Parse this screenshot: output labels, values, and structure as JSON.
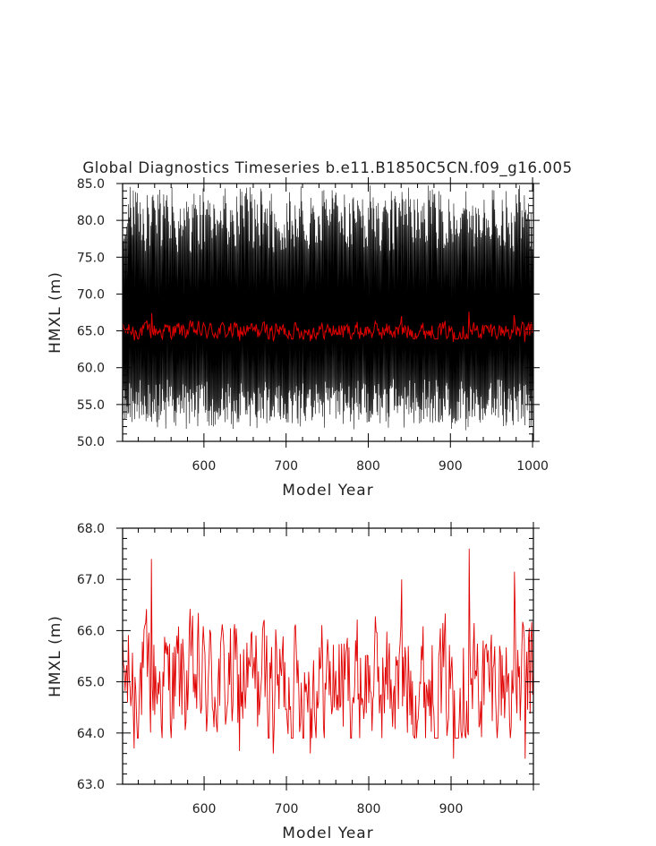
{
  "figure": {
    "title": "Global Diagnostics Timeseries b.e11.B1850C5CN.f09_g16.005"
  },
  "colors": {
    "monthly": "#000000",
    "annual": "#e00000",
    "axes": "#000000",
    "text": "#222222"
  },
  "chart_data": [
    {
      "type": "line",
      "panel": "top",
      "xlabel": "Model Year",
      "ylabel": "HMXL (m)",
      "xlim": [
        501,
        1001
      ],
      "ylim": [
        50.0,
        85.0
      ],
      "x_ticks": [
        600,
        700,
        800,
        900,
        1000
      ],
      "x_tick_labels": [
        "600",
        "700",
        "800",
        "900",
        "1000"
      ],
      "y_ticks": [
        50,
        55,
        60,
        65,
        70,
        75,
        80,
        85
      ],
      "y_tick_labels": [
        "50.0",
        "55.0",
        "60.0",
        "65.0",
        "70.0",
        "75.0",
        "80.0",
        "85.0"
      ],
      "grid": false,
      "series": [
        {
          "style": "monthly-cycle",
          "color": "#000000",
          "points_per_year": 12,
          "mean": 65.0,
          "seasonal_min_range": [
            52.0,
            58.0
          ],
          "seasonal_max_range": [
            76.0,
            84.5
          ]
        },
        {
          "style": "annual-mean",
          "color": "#e00000",
          "mean": 65.0,
          "min": 63.5,
          "max": 67.6
        }
      ]
    },
    {
      "type": "line",
      "panel": "bottom",
      "xlabel": "Model Year",
      "ylabel": "HMXL (m)",
      "xlim": [
        501,
        1000
      ],
      "ylim": [
        63.0,
        68.0
      ],
      "x_ticks": [
        600,
        700,
        800,
        900
      ],
      "x_tick_labels": [
        "600",
        "700",
        "800",
        "900"
      ],
      "y_ticks": [
        63,
        64,
        65,
        66,
        67,
        68
      ],
      "y_tick_labels": [
        "63.0",
        "64.0",
        "65.0",
        "66.0",
        "67.0",
        "68.0"
      ],
      "grid": false,
      "series": [
        {
          "style": "annual-mean",
          "color": "#e00000",
          "mean": 65.0,
          "min": 63.5,
          "max": 67.6,
          "peaks": [
            [
              536,
              67.4
            ],
            [
              922,
              67.6
            ],
            [
              977,
              67.15
            ],
            [
              840,
              67.0
            ]
          ],
          "troughs": [
            [
              515,
              63.7
            ],
            [
              643,
              63.65
            ],
            [
              684,
              63.6
            ],
            [
              729,
              63.6
            ],
            [
              903,
              63.5
            ],
            [
              990,
              63.5
            ]
          ]
        }
      ]
    }
  ]
}
